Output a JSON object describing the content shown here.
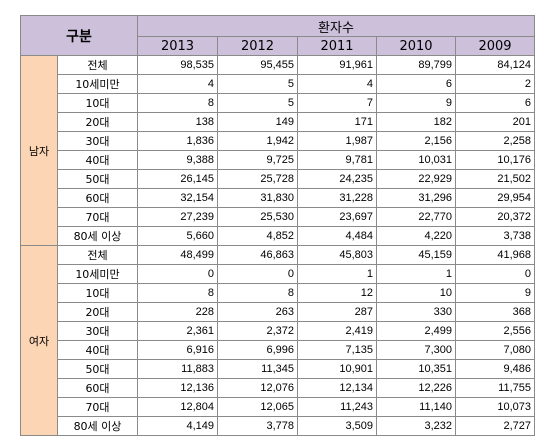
{
  "header": {
    "gubun": "구분",
    "patients": "환자수",
    "years": [
      "2013",
      "2012",
      "2011",
      "2010",
      "2009"
    ]
  },
  "groups": [
    {
      "label": "남자",
      "rows": [
        {
          "category": "전체",
          "values": [
            "98,535",
            "95,455",
            "91,961",
            "89,799",
            "84,124"
          ]
        },
        {
          "category": "10세미만",
          "values": [
            "4",
            "5",
            "4",
            "6",
            "2"
          ]
        },
        {
          "category": "10대",
          "values": [
            "8",
            "5",
            "7",
            "9",
            "6"
          ]
        },
        {
          "category": "20대",
          "values": [
            "138",
            "149",
            "171",
            "182",
            "201"
          ]
        },
        {
          "category": "30대",
          "values": [
            "1,836",
            "1,942",
            "1,987",
            "2,156",
            "2,258"
          ]
        },
        {
          "category": "40대",
          "values": [
            "9,388",
            "9,725",
            "9,781",
            "10,031",
            "10,176"
          ]
        },
        {
          "category": "50대",
          "values": [
            "26,145",
            "25,728",
            "24,235",
            "22,929",
            "21,502"
          ]
        },
        {
          "category": "60대",
          "values": [
            "32,154",
            "31,830",
            "31,228",
            "31,296",
            "29,954"
          ]
        },
        {
          "category": "70대",
          "values": [
            "27,239",
            "25,530",
            "23,697",
            "22,770",
            "20,372"
          ]
        },
        {
          "category": "80세 이상",
          "values": [
            "5,660",
            "4,852",
            "4,484",
            "4,220",
            "3,738"
          ]
        }
      ]
    },
    {
      "label": "여자",
      "rows": [
        {
          "category": "전체",
          "values": [
            "48,499",
            "46,863",
            "45,803",
            "45,159",
            "41,968"
          ]
        },
        {
          "category": "10세미만",
          "values": [
            "0",
            "0",
            "1",
            "1",
            "0"
          ]
        },
        {
          "category": "10대",
          "values": [
            "8",
            "8",
            "12",
            "10",
            "9"
          ]
        },
        {
          "category": "20대",
          "values": [
            "228",
            "263",
            "287",
            "330",
            "368"
          ]
        },
        {
          "category": "30대",
          "values": [
            "2,361",
            "2,372",
            "2,419",
            "2,499",
            "2,556"
          ]
        },
        {
          "category": "40대",
          "values": [
            "6,916",
            "6,996",
            "7,135",
            "7,300",
            "7,080"
          ]
        },
        {
          "category": "50대",
          "values": [
            "11,883",
            "11,345",
            "10,901",
            "10,351",
            "9,486"
          ]
        },
        {
          "category": "60대",
          "values": [
            "12,136",
            "12,076",
            "12,134",
            "12,226",
            "11,755"
          ]
        },
        {
          "category": "70대",
          "values": [
            "12,804",
            "12,065",
            "11,243",
            "11,140",
            "10,073"
          ]
        },
        {
          "category": "80세 이상",
          "values": [
            "4,149",
            "3,778",
            "3,509",
            "3,232",
            "2,727"
          ]
        }
      ]
    }
  ]
}
